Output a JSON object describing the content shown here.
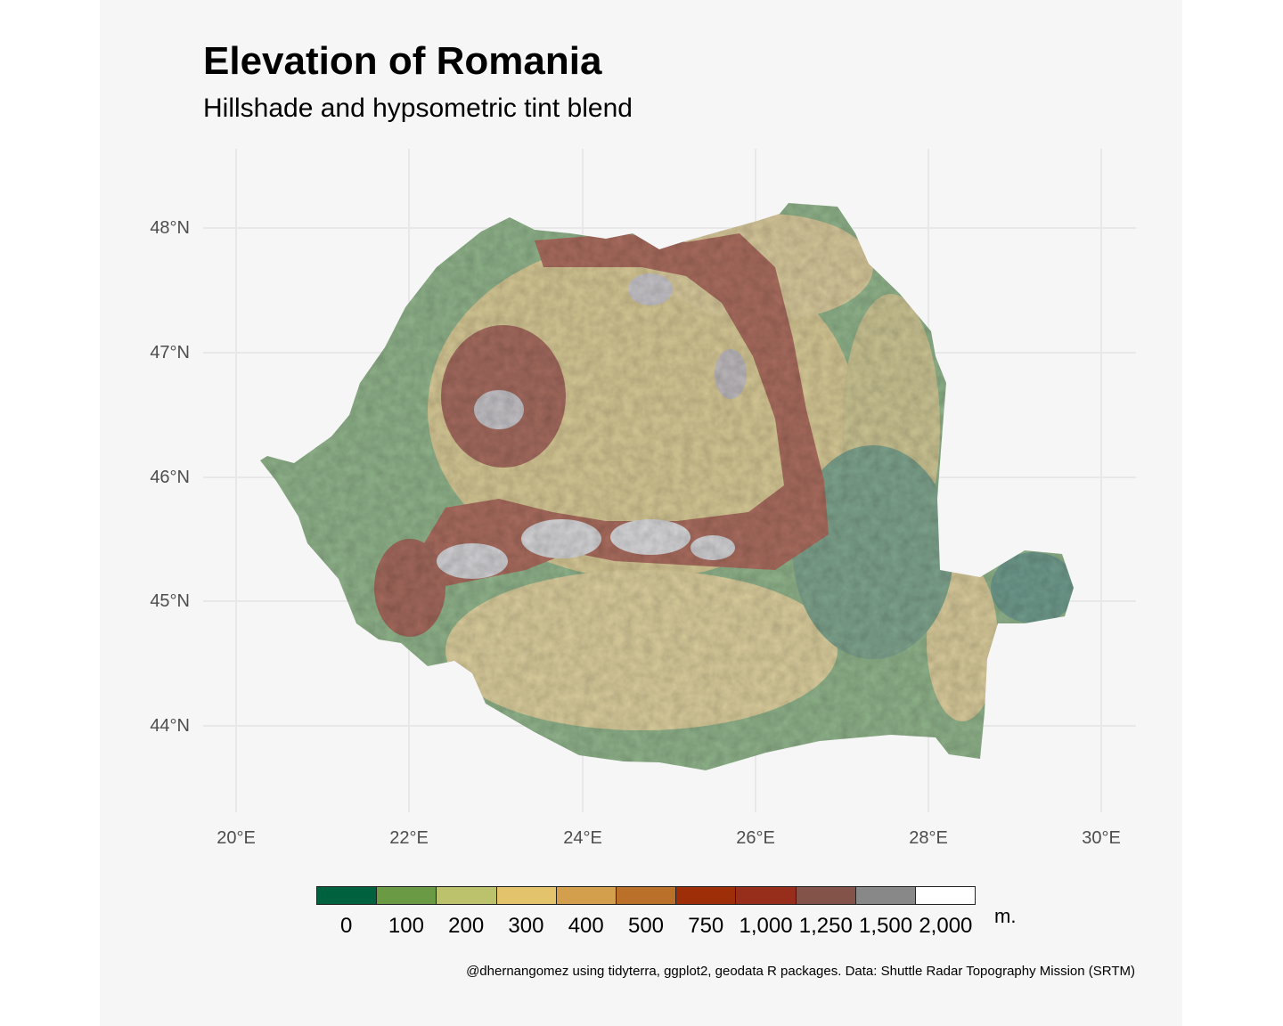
{
  "title": "Elevation of Romania",
  "subtitle": "Hillshade and hypsometric tint blend",
  "caption": "@dhernangomez using tidyterra, ggplot2, geodata R packages. Data: Shuttle Radar Topography Mission (SRTM)",
  "axes": {
    "latitude_labels": [
      "48°N",
      "47°N",
      "46°N",
      "45°N",
      "44°N"
    ],
    "longitude_labels": [
      "20°E",
      "22°E",
      "24°E",
      "26°E",
      "28°E",
      "30°E"
    ]
  },
  "legend": {
    "unit": "m.",
    "breaks": [
      "0",
      "100",
      "200",
      "300",
      "400",
      "500",
      "750",
      "1,000",
      "1,250",
      "1,500",
      "2,000"
    ],
    "colors": [
      "#00613f",
      "#6b9a45",
      "#bcc26c",
      "#e3c46c",
      "#d49f4c",
      "#ba7029",
      "#9e2e08",
      "#962e1b",
      "#835349",
      "#888888",
      "#ffffff"
    ]
  },
  "colors": {
    "background": "#f6f6f6",
    "grid": "#e8e8e8",
    "lowland": "#8fb28a",
    "hills": "#d6c99a",
    "mountains": "#a86c5e",
    "peaks": "#c9c9cc",
    "delta": "#6f9a8c"
  }
}
